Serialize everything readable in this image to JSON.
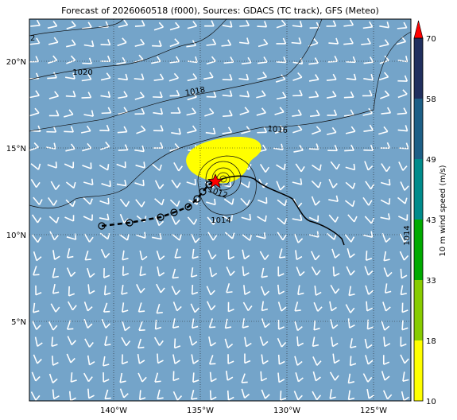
{
  "title": "Forecast of 2026060518 (f000), Sources: GDACS (TC track), GFS (Meteo)",
  "lon_labels": [
    "140°W",
    "135°W",
    "130°W",
    "125°W"
  ],
  "lat_labels": [
    "20°N",
    "15°N",
    "10°N",
    "5°N"
  ],
  "isobar_labels": [
    "1020",
    "1018",
    "1016",
    "1012",
    "1014",
    "1014",
    "2"
  ],
  "colorbar": {
    "label": "10 m wind speed (m/s)",
    "ticks": [
      "10",
      "18",
      "33",
      "43",
      "49",
      "58",
      "70"
    ]
  }
}
